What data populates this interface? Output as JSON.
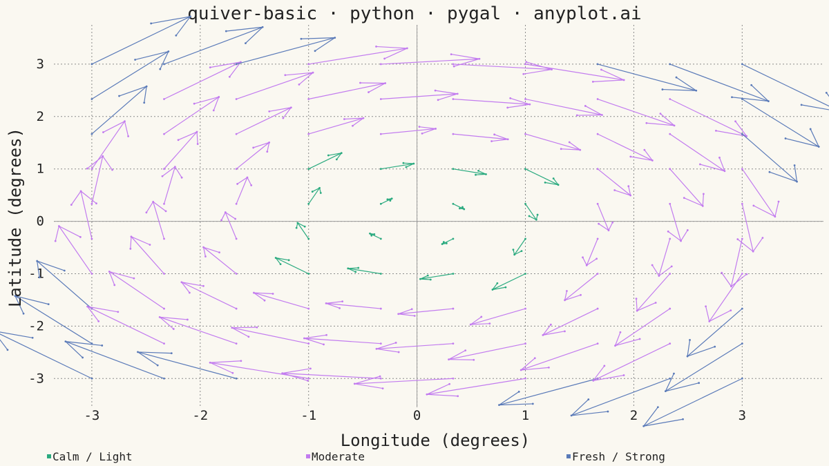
{
  "chart_data": {
    "type": "quiver",
    "title": "quiver-basic · python · pygal · anyplot.ai",
    "xlabel": "Longitude (degrees)",
    "ylabel": "Latitude (degrees)",
    "xlim": [
      -3.35,
      3.75
    ],
    "ylim": [
      -3.55,
      3.75
    ],
    "x_ticks": [
      -3,
      -2,
      -1,
      0,
      1,
      2,
      3
    ],
    "y_ticks": [
      -3,
      -2,
      -1,
      0,
      1,
      2,
      3
    ],
    "grid": true,
    "legend_position": "bottom",
    "field": "u = y/3.3, v = -x/3.3 on grid x,y in {-3,-2.33,-1.67,-1,-0.33,0.33,1,1.67,2.33,3}",
    "series": [
      {
        "name": "Calm / Light",
        "color": "#2AAA7F",
        "max_speed": 0.5
      },
      {
        "name": "Moderate",
        "color": "#C27BEF",
        "max_speed": 1.0
      },
      {
        "name": "Fresh / Strong",
        "color": "#5A7AB8",
        "max_speed": 99
      }
    ]
  }
}
